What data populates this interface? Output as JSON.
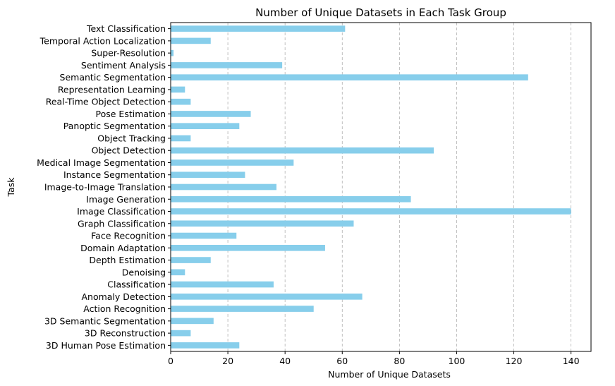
{
  "chart_data": {
    "type": "bar",
    "orientation": "horizontal",
    "title": "Number of Unique Datasets in Each Task Group",
    "xlabel": "Number of Unique Datasets",
    "ylabel": "Task",
    "xlim": [
      0,
      147
    ],
    "xticks": [
      0,
      20,
      40,
      60,
      80,
      100,
      120,
      140
    ],
    "grid": "x-dashed",
    "bar_color": "#87CEEB",
    "categories": [
      "3D Human Pose Estimation",
      "3D Reconstruction",
      "3D Semantic Segmentation",
      "Action Recognition",
      "Anomaly Detection",
      "Classification",
      "Denoising",
      "Depth Estimation",
      "Domain Adaptation",
      "Face Recognition",
      "Graph Classification",
      "Image Classification",
      "Image Generation",
      "Image-to-Image Translation",
      "Instance Segmentation",
      "Medical Image Segmentation",
      "Object Detection",
      "Object Tracking",
      "Panoptic Segmentation",
      "Pose Estimation",
      "Real-Time Object Detection",
      "Representation Learning",
      "Semantic Segmentation",
      "Sentiment Analysis",
      "Super-Resolution",
      "Temporal Action Localization",
      "Text Classification"
    ],
    "values": [
      24,
      7,
      15,
      50,
      67,
      36,
      5,
      14,
      54,
      23,
      64,
      140,
      84,
      37,
      26,
      43,
      92,
      7,
      24,
      28,
      7,
      5,
      125,
      39,
      1,
      14,
      61
    ]
  }
}
